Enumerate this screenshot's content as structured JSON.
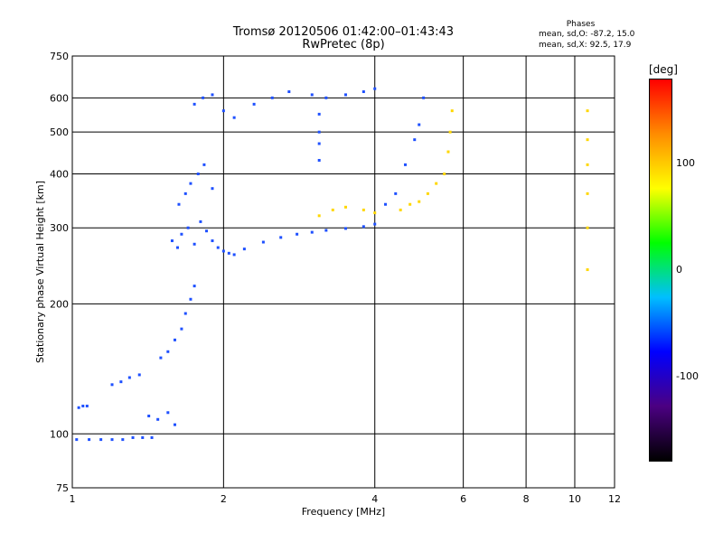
{
  "header": {
    "title_line1": "Tromsø 20120506 01:42:00–01:43:43",
    "title_line2": "RwPretec (8p)"
  },
  "phases_box": {
    "title": "Phases",
    "line1": "mean, sd,O: -87.2, 15.0",
    "line2": "mean, sd,X: 92.5, 17.9"
  },
  "colorbar": {
    "unit": "[deg]",
    "ticks": [
      "100",
      "0",
      "-100"
    ],
    "tick_values": [
      100,
      0,
      -100
    ],
    "range": [
      -180,
      180
    ],
    "colors": [
      "#000000",
      "#4b0082",
      "#0000ff",
      "#00bfff",
      "#00ff00",
      "#ffff00",
      "#ff8c00",
      "#ff0000"
    ]
  },
  "chart_data": {
    "type": "scatter",
    "title": "Tromsø 20120506 01:42:00–01:43:43",
    "subtitle": "RwPretec (8p)",
    "xlabel": "Frequency [MHz]",
    "ylabel": "Stationary phase Virtual Height [km]",
    "xscale": "log",
    "yscale": "log",
    "xlim": [
      1,
      12
    ],
    "ylim": [
      75,
      750
    ],
    "xticks": [
      "1",
      "2",
      "4",
      "6",
      "8",
      "10",
      "12"
    ],
    "xtick_values": [
      1,
      2,
      4,
      6,
      8,
      10,
      12
    ],
    "yticks": [
      "750",
      "600",
      "500",
      "400",
      "300",
      "200",
      "100",
      "75"
    ],
    "ytick_values": [
      750,
      600,
      500,
      400,
      300,
      200,
      100,
      75
    ],
    "grid": true,
    "series": [
      {
        "polarity": "O",
        "color": "#1e50ff",
        "points": [
          [
            1.02,
            97
          ],
          [
            1.08,
            97
          ],
          [
            1.14,
            97
          ],
          [
            1.2,
            97
          ],
          [
            1.26,
            97
          ],
          [
            1.32,
            98
          ],
          [
            1.38,
            98
          ],
          [
            1.44,
            98
          ],
          [
            1.03,
            115
          ],
          [
            1.05,
            116
          ],
          [
            1.07,
            116
          ],
          [
            1.2,
            130
          ],
          [
            1.25,
            132
          ],
          [
            1.3,
            135
          ],
          [
            1.36,
            137
          ],
          [
            1.42,
            110
          ],
          [
            1.48,
            108
          ],
          [
            1.55,
            112
          ],
          [
            1.6,
            105
          ],
          [
            1.5,
            150
          ],
          [
            1.55,
            155
          ],
          [
            1.6,
            165
          ],
          [
            1.65,
            175
          ],
          [
            1.68,
            190
          ],
          [
            1.72,
            205
          ],
          [
            1.75,
            220
          ],
          [
            1.58,
            280
          ],
          [
            1.62,
            270
          ],
          [
            1.65,
            290
          ],
          [
            1.7,
            300
          ],
          [
            1.75,
            275
          ],
          [
            1.8,
            310
          ],
          [
            1.85,
            295
          ],
          [
            1.63,
            340
          ],
          [
            1.68,
            360
          ],
          [
            1.72,
            380
          ],
          [
            1.78,
            400
          ],
          [
            1.83,
            420
          ],
          [
            1.9,
            370
          ],
          [
            1.9,
            280
          ],
          [
            1.95,
            270
          ],
          [
            2.0,
            265
          ],
          [
            2.05,
            262
          ],
          [
            2.1,
            260
          ],
          [
            2.2,
            268
          ],
          [
            2.4,
            278
          ],
          [
            2.6,
            285
          ],
          [
            2.8,
            290
          ],
          [
            3.0,
            293
          ],
          [
            3.2,
            296
          ],
          [
            3.5,
            299
          ],
          [
            3.8,
            302
          ],
          [
            4.0,
            306
          ],
          [
            1.75,
            580
          ],
          [
            1.82,
            600
          ],
          [
            1.9,
            610
          ],
          [
            2.0,
            560
          ],
          [
            2.1,
            540
          ],
          [
            2.3,
            580
          ],
          [
            2.5,
            600
          ],
          [
            2.7,
            620
          ],
          [
            3.0,
            610
          ],
          [
            3.2,
            600
          ],
          [
            3.5,
            610
          ],
          [
            3.8,
            620
          ],
          [
            4.0,
            630
          ],
          [
            3.1,
            550
          ],
          [
            3.1,
            500
          ],
          [
            3.1,
            470
          ],
          [
            3.1,
            430
          ],
          [
            4.2,
            340
          ],
          [
            4.4,
            360
          ],
          [
            4.6,
            420
          ],
          [
            4.8,
            480
          ],
          [
            4.9,
            520
          ],
          [
            5.0,
            600
          ]
        ]
      },
      {
        "polarity": "X",
        "color": "#ffd700",
        "points": [
          [
            3.1,
            320
          ],
          [
            3.3,
            330
          ],
          [
            3.5,
            335
          ],
          [
            3.8,
            330
          ],
          [
            4.0,
            325
          ],
          [
            4.5,
            330
          ],
          [
            4.7,
            340
          ],
          [
            4.9,
            345
          ],
          [
            5.1,
            360
          ],
          [
            5.3,
            380
          ],
          [
            5.5,
            400
          ],
          [
            5.6,
            450
          ],
          [
            5.65,
            500
          ],
          [
            5.7,
            560
          ],
          [
            10.6,
            240
          ],
          [
            10.6,
            300
          ],
          [
            10.6,
            360
          ],
          [
            10.6,
            420
          ],
          [
            10.6,
            480
          ],
          [
            10.6,
            560
          ]
        ]
      }
    ]
  }
}
